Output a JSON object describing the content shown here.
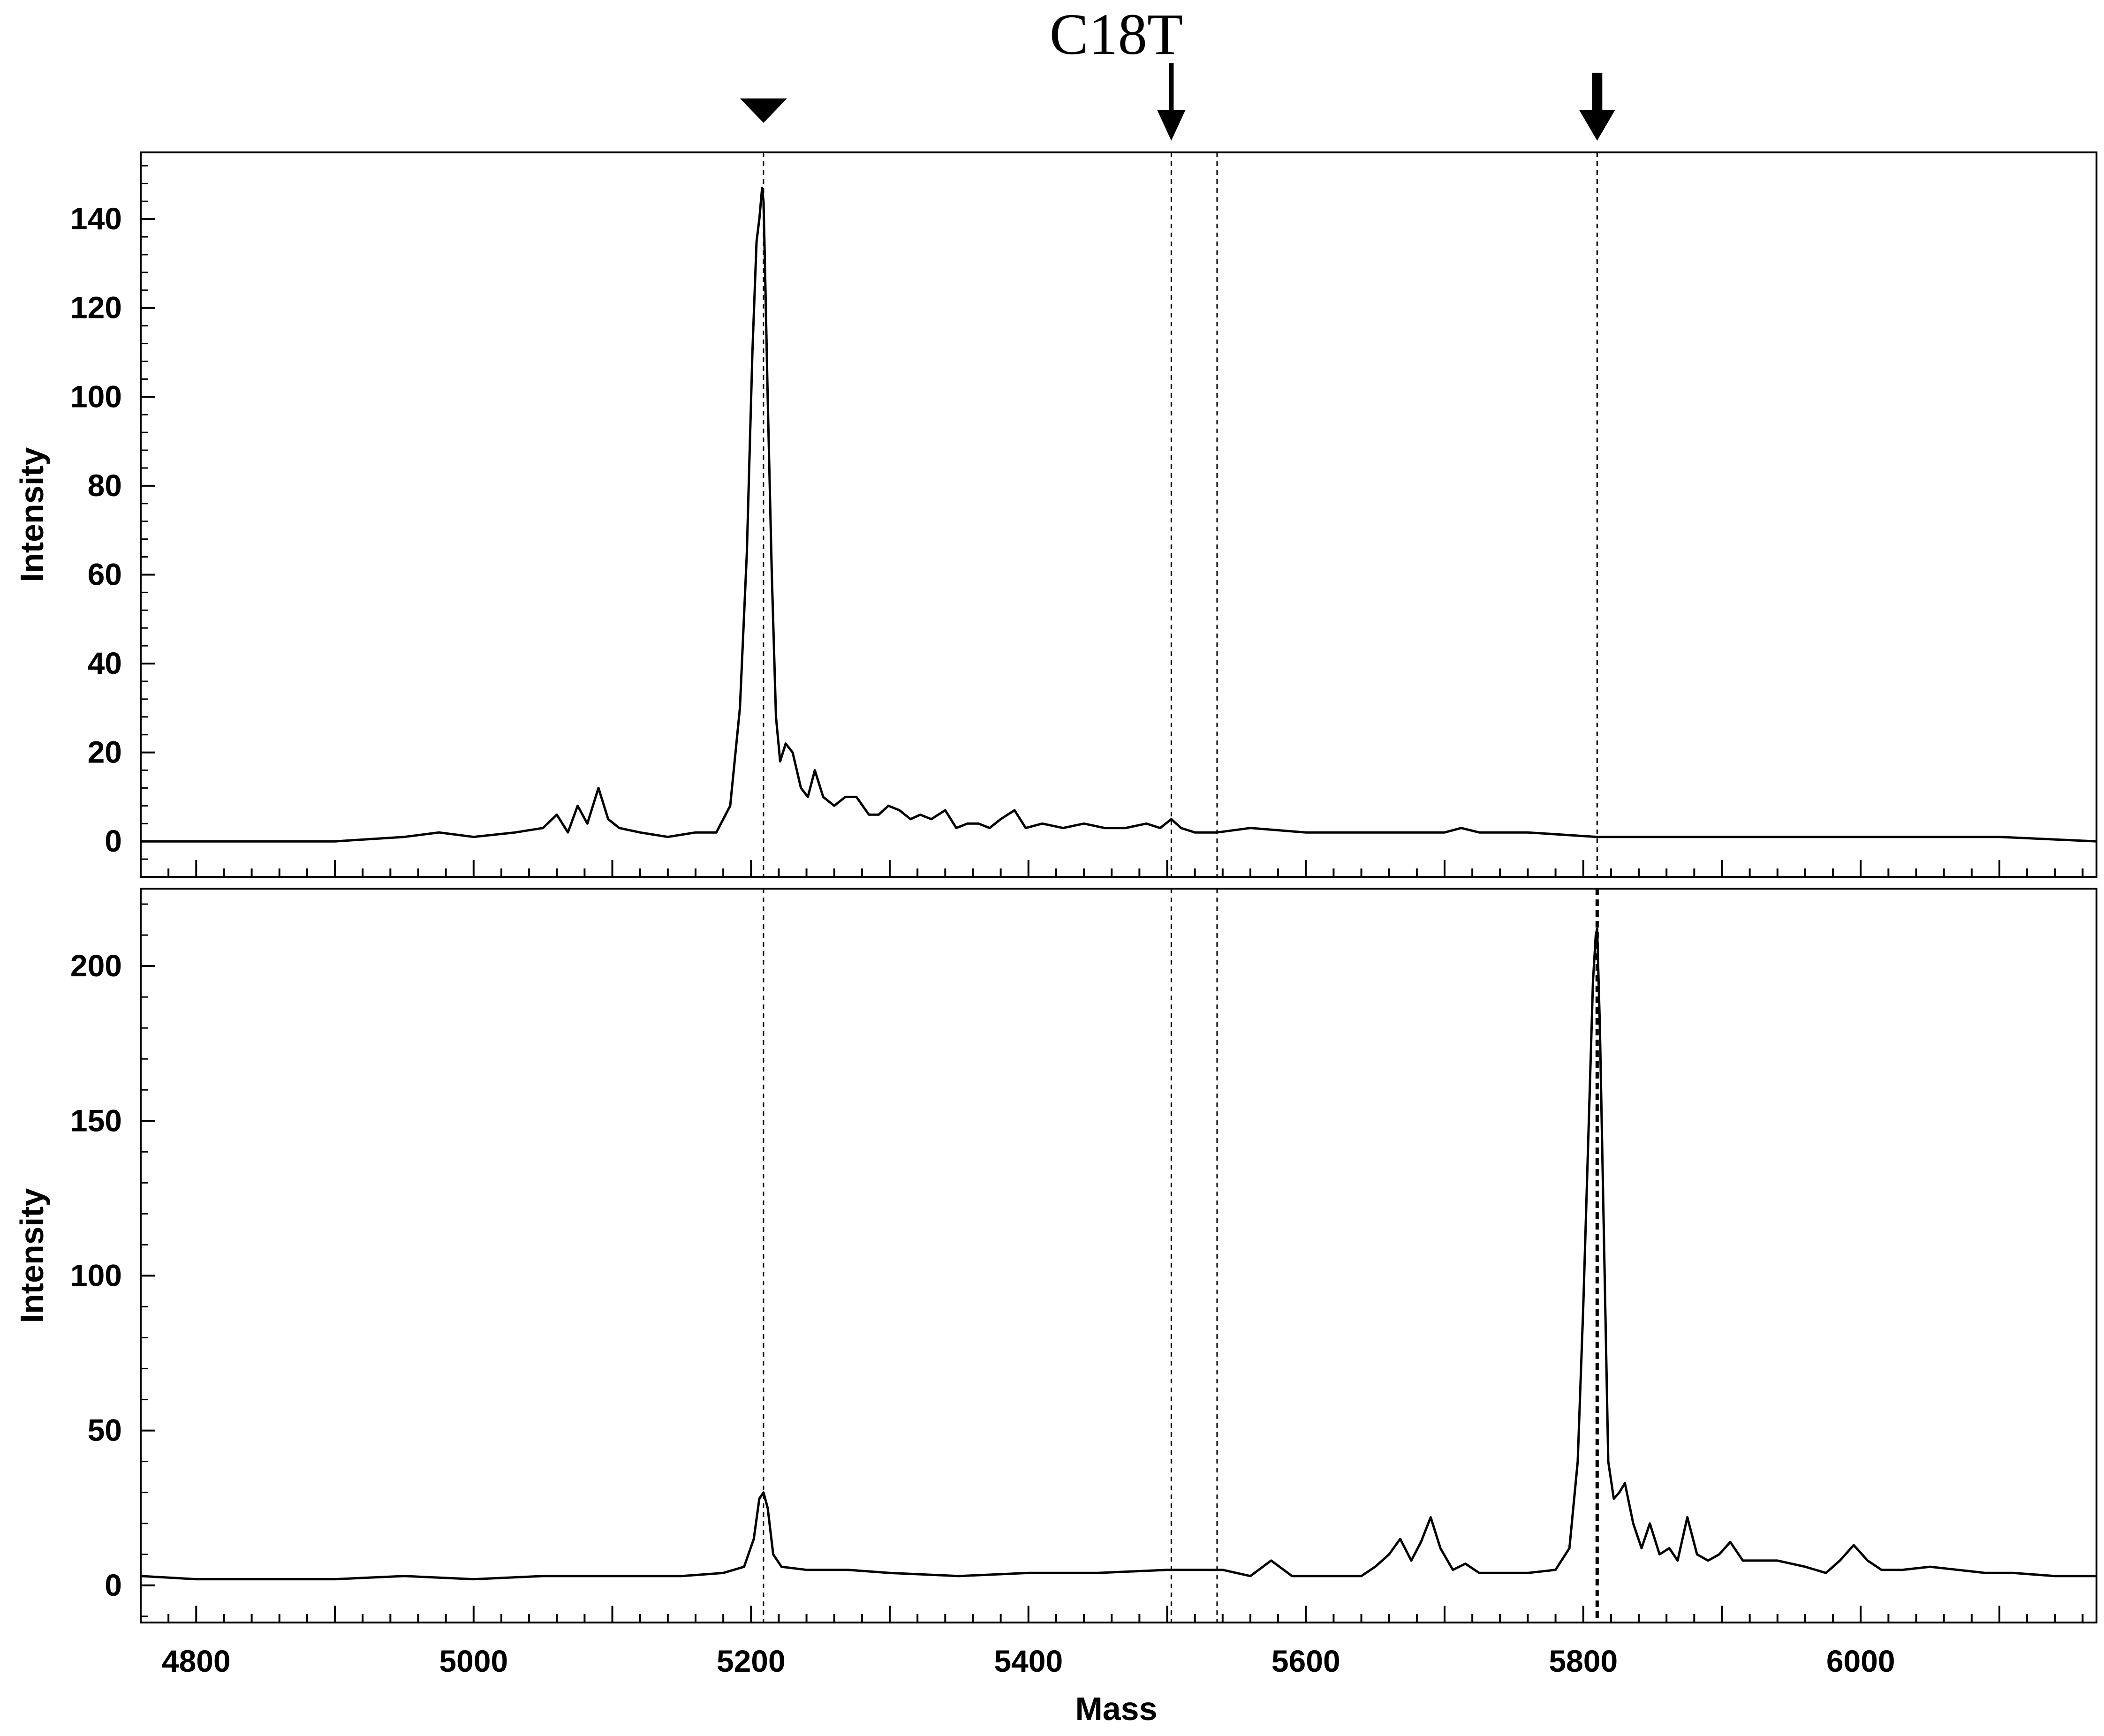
{
  "chart_data": {
    "type": "line",
    "title": "C18T",
    "xlabel": "Mass",
    "xlim": [
      4760,
      6170
    ],
    "xticks": [
      4800,
      5000,
      5200,
      5400,
      5600,
      5800,
      6000
    ],
    "xtick_labels": [
      "4800",
      "5000",
      "5200",
      "5400",
      "5600",
      "5800",
      "6000"
    ],
    "marked_masses": [
      5209,
      5503,
      5536,
      5810
    ],
    "markers": [
      {
        "kind": "triangle-down",
        "mass": 5209
      },
      {
        "kind": "arrow-down",
        "mass": 5503
      },
      {
        "kind": "arrow-down-bold",
        "mass": 5810
      }
    ],
    "panels": [
      {
        "ylabel": "Intensity",
        "ylim": [
          -8,
          155
        ],
        "yticks": [
          0,
          20,
          40,
          60,
          80,
          100,
          120,
          140
        ],
        "ytick_labels": [
          "0",
          "20",
          "40",
          "60",
          "80",
          "100",
          "120",
          "140"
        ],
        "bold_marker_mass": null,
        "series": [
          {
            "x": [
              4760,
              4800,
              4850,
              4900,
              4950,
              4975,
              5000,
              5030,
              5050,
              5060,
              5068,
              5075,
              5082,
              5090,
              5097,
              5105,
              5120,
              5140,
              5160,
              5175,
              5185,
              5192,
              5197,
              5201,
              5204,
              5206,
              5208,
              5209,
              5210,
              5212,
              5215,
              5218,
              5221,
              5225,
              5230,
              5236,
              5241,
              5246,
              5252,
              5260,
              5268,
              5276,
              5285,
              5292,
              5299,
              5307,
              5315,
              5322,
              5330,
              5340,
              5348,
              5356,
              5364,
              5372,
              5380,
              5390,
              5398,
              5410,
              5425,
              5440,
              5455,
              5470,
              5485,
              5495,
              5503,
              5510,
              5520,
              5536,
              5560,
              5600,
              5640,
              5680,
              5700,
              5712,
              5725,
              5760,
              5810,
              5860,
              5920,
              5980,
              6040,
              6100,
              6170
            ],
            "y": [
              0,
              0,
              0,
              0,
              1,
              2,
              1,
              2,
              3,
              6,
              2,
              8,
              4,
              12,
              5,
              3,
              2,
              1,
              2,
              2,
              8,
              30,
              65,
              110,
              135,
              140,
              147,
              144,
              130,
              100,
              60,
              28,
              18,
              22,
              20,
              12,
              10,
              16,
              10,
              8,
              10,
              10,
              6,
              6,
              8,
              7,
              5,
              6,
              5,
              7,
              3,
              4,
              4,
              3,
              5,
              7,
              3,
              4,
              3,
              4,
              3,
              3,
              4,
              3,
              5,
              3,
              2,
              2,
              3,
              2,
              2,
              2,
              2,
              3,
              2,
              2,
              1,
              1,
              1,
              1,
              1,
              1,
              0
            ]
          }
        ]
      },
      {
        "ylabel": "Intensity",
        "ylim": [
          -12,
          225
        ],
        "yticks": [
          0,
          50,
          100,
          150,
          200
        ],
        "ytick_labels": [
          "0",
          "50",
          "100",
          "150",
          "200"
        ],
        "bold_marker_mass": 5810,
        "series": [
          {
            "x": [
              4760,
              4800,
              4850,
              4900,
              4950,
              5000,
              5050,
              5100,
              5150,
              5180,
              5195,
              5202,
              5206,
              5209,
              5212,
              5216,
              5222,
              5240,
              5270,
              5300,
              5350,
              5400,
              5450,
              5500,
              5540,
              5560,
              5575,
              5590,
              5620,
              5640,
              5650,
              5660,
              5668,
              5676,
              5683,
              5690,
              5697,
              5706,
              5715,
              5725,
              5740,
              5760,
              5780,
              5790,
              5796,
              5800,
              5804,
              5807,
              5809,
              5810,
              5812,
              5815,
              5818,
              5822,
              5826,
              5830,
              5836,
              5842,
              5848,
              5855,
              5862,
              5868,
              5875,
              5882,
              5890,
              5898,
              5906,
              5915,
              5925,
              5940,
              5960,
              5975,
              5985,
              5995,
              6005,
              6015,
              6030,
              6050,
              6070,
              6090,
              6110,
              6140,
              6170
            ],
            "y": [
              3,
              2,
              2,
              2,
              3,
              2,
              3,
              3,
              3,
              4,
              6,
              15,
              28,
              30,
              25,
              10,
              6,
              5,
              5,
              4,
              3,
              4,
              4,
              5,
              5,
              3,
              8,
              3,
              3,
              3,
              6,
              10,
              15,
              8,
              14,
              22,
              12,
              5,
              7,
              4,
              4,
              4,
              5,
              12,
              40,
              90,
              150,
              195,
              210,
              212,
              180,
              110,
              40,
              28,
              30,
              33,
              20,
              12,
              20,
              10,
              12,
              8,
              22,
              10,
              8,
              10,
              14,
              8,
              8,
              8,
              6,
              4,
              8,
              13,
              8,
              5,
              5,
              6,
              5,
              4,
              4,
              3,
              3
            ]
          }
        ]
      }
    ]
  }
}
